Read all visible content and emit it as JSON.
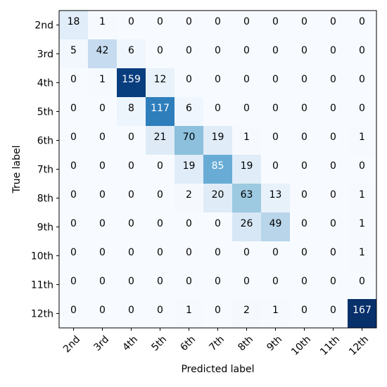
{
  "chart_data": {
    "type": "heatmap",
    "title": "",
    "xlabel": "Predicted label",
    "ylabel": "True label",
    "x_categories": [
      "2nd",
      "3rd",
      "4th",
      "5th",
      "6th",
      "7th",
      "8th",
      "9th",
      "10th",
      "11th",
      "12th"
    ],
    "y_categories": [
      "2nd",
      "3rd",
      "4th",
      "5th",
      "6th",
      "7th",
      "8th",
      "9th",
      "10th",
      "11th",
      "12th"
    ],
    "values": [
      [
        18,
        1,
        0,
        0,
        0,
        0,
        0,
        0,
        0,
        0,
        0
      ],
      [
        5,
        42,
        6,
        0,
        0,
        0,
        0,
        0,
        0,
        0,
        0
      ],
      [
        0,
        1,
        159,
        12,
        0,
        0,
        0,
        0,
        0,
        0,
        0
      ],
      [
        0,
        0,
        8,
        117,
        6,
        0,
        0,
        0,
        0,
        0,
        0
      ],
      [
        0,
        0,
        0,
        21,
        70,
        19,
        1,
        0,
        0,
        0,
        1
      ],
      [
        0,
        0,
        0,
        0,
        19,
        85,
        19,
        0,
        0,
        0,
        0
      ],
      [
        0,
        0,
        0,
        0,
        2,
        20,
        63,
        13,
        0,
        0,
        1
      ],
      [
        0,
        0,
        0,
        0,
        0,
        0,
        26,
        49,
        0,
        0,
        1
      ],
      [
        0,
        0,
        0,
        0,
        0,
        0,
        0,
        0,
        0,
        0,
        1
      ],
      [
        0,
        0,
        0,
        0,
        0,
        0,
        0,
        0,
        0,
        0,
        0
      ],
      [
        0,
        0,
        0,
        0,
        1,
        0,
        2,
        1,
        0,
        0,
        167
      ]
    ],
    "color_range": [
      0,
      167
    ],
    "colormap": "Blues",
    "colors": {
      "low": "#f7fbff",
      "high": "#08306b",
      "text_dark": "#000000",
      "text_light": "#ffffff"
    },
    "grid": false
  }
}
